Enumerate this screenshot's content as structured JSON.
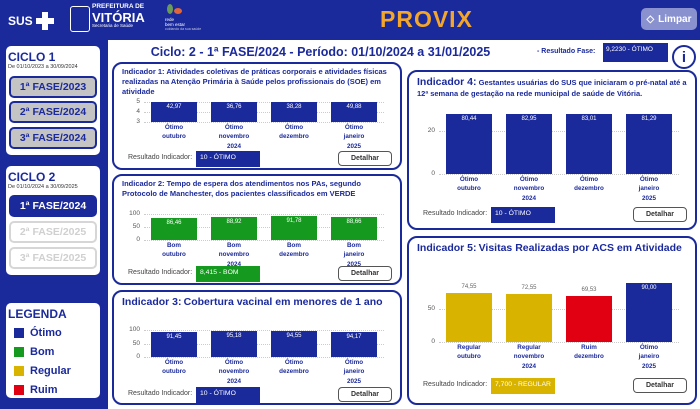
{
  "header": {
    "logo_sus": "SUS",
    "logo_prefeitura": [
      "PREFEITURA DE",
      "VITÓRIA",
      "Secretaria de Saúde"
    ],
    "logo_rede": [
      "rede",
      "bem estar",
      "cuidando da sua saúde"
    ],
    "app_title": "PROVIX",
    "clear_button": "Limpar",
    "clear_icon": "eraser-icon"
  },
  "sidebar": {
    "ciclo1": {
      "title": "CICLO 1",
      "range": "De 01/10/2023 a 30/09/2024",
      "phases": [
        "1ª FASE/2023",
        "2ª FASE/2024",
        "3ª FASE/2024"
      ]
    },
    "ciclo2": {
      "title": "CICLO 2",
      "range": "De 01/10/2024 a 30/09/2025",
      "phases": [
        "1ª FASE/2024",
        "2ª FASE/2025",
        "3ª FASE/2025"
      ],
      "active": 0
    },
    "legend": {
      "title": "LEGENDA",
      "items": [
        {
          "label": "Ótimo",
          "color": "#1b2a9b"
        },
        {
          "label": "Bom",
          "color": "#159a1f"
        },
        {
          "label": "Regular",
          "color": "#d8b400"
        },
        {
          "label": "Ruim",
          "color": "#e00012"
        }
      ]
    }
  },
  "main": {
    "title": "Ciclo: 2 - 1ª FASE/2024 - Período: 01/10/2024 a 31/01/2025",
    "phase_result_label": "- Resultado Fase:",
    "phase_result": "9,2230 - ÓTIMO",
    "info_icon": "i"
  },
  "colors": {
    "Ótimo": "#1b2a9b",
    "Bom": "#159a1f",
    "Regular": "#d8b400",
    "Ruim": "#e00012"
  },
  "indicators": [
    {
      "title_prefix": "Indicador 1:",
      "title": "Atividades coletivas de práticas corporais e atividades físicas realizadas na Atenção Primária à Saúde pelos profissionais do (SOE) em atividade",
      "y_ticks": [
        3,
        4,
        5
      ],
      "ylim": [
        3,
        5
      ],
      "months": [
        "outubro",
        "novembro",
        "dezembro",
        "janeiro"
      ],
      "status": [
        "Ótimo",
        "Ótimo",
        "Ótimo",
        "Ótimo"
      ],
      "values": [
        "42,97",
        "36,76",
        "38,28",
        "49,88"
      ],
      "years": [
        "2024",
        "2025"
      ],
      "result_label": "Resultado Indicador:",
      "result": "10 - ÓTIMO",
      "result_color": "#1b2a9b",
      "detail": "Detalhar"
    },
    {
      "title_prefix": "Indicador 2:",
      "title": "Tempo de espera dos atendimentos nos PAs, segundo Protocolo de Manchester, dos pacientes classificados em VERDE",
      "y_ticks": [
        0,
        50,
        100
      ],
      "ylim": [
        0,
        100
      ],
      "months": [
        "outubro",
        "novembro",
        "dezembro",
        "janeiro"
      ],
      "status": [
        "Bom",
        "Bom",
        "Bom",
        "Bom"
      ],
      "values": [
        "86,46",
        "88,92",
        "91,78",
        "88,66"
      ],
      "years": [
        "2024",
        "2025"
      ],
      "result_label": "Resultado Indicador:",
      "result": "8,415 - BOM",
      "result_color": "#159a1f",
      "detail": "Detalhar"
    },
    {
      "title_prefix": "Indicador 3:",
      "title": "Cobertura vacinal em menores de 1 ano",
      "y_ticks": [
        0,
        50,
        100
      ],
      "ylim": [
        0,
        100
      ],
      "months": [
        "outubro",
        "novembro",
        "dezembro",
        "janeiro"
      ],
      "status": [
        "Ótimo",
        "Ótimo",
        "Ótimo",
        "Ótimo"
      ],
      "values": [
        "91,45",
        "95,18",
        "94,55",
        "94,17"
      ],
      "years": [
        "2024",
        "2025"
      ],
      "result_label": "Resultado Indicador:",
      "result": "10 - ÓTIMO",
      "result_color": "#1b2a9b",
      "detail": "Detalhar"
    },
    {
      "title_prefix": "Indicador 4:",
      "title": "Gestantes usuárias do SUS que iniciaram o pré-natal até a 12ª semana de gestação na rede municipal de saúde de Vitória.",
      "y_ticks": [
        0,
        20
      ],
      "ylim": [
        0,
        28
      ],
      "months": [
        "outubro",
        "novembro",
        "dezembro",
        "janeiro"
      ],
      "status": [
        "Ótimo",
        "Ótimo",
        "Ótimo",
        "Ótimo"
      ],
      "values": [
        "80,44",
        "82,95",
        "83,01",
        "81,29"
      ],
      "years": [
        "2024",
        "2025"
      ],
      "result_label": "Resultado Indicador:",
      "result": "10 - ÓTIMO",
      "result_color": "#1b2a9b",
      "detail": "Detalhar"
    },
    {
      "title_prefix": "Indicador 5:",
      "title": "Visitas Realizadas por ACS em Atividade",
      "y_ticks": [
        0,
        50
      ],
      "ylim": [
        0,
        100
      ],
      "months": [
        "outubro",
        "novembro",
        "dezembro",
        "janeiro"
      ],
      "status": [
        "Regular",
        "Regular",
        "Ruim",
        "Ótimo"
      ],
      "values": [
        "74,55",
        "72,55",
        "69,53",
        "90,00"
      ],
      "years": [
        "2024",
        "2025"
      ],
      "result_label": "Resultado Indicador:",
      "result": "7,700 - REGULAR",
      "result_color": "#d8b400",
      "detail": "Detalhar"
    }
  ]
}
